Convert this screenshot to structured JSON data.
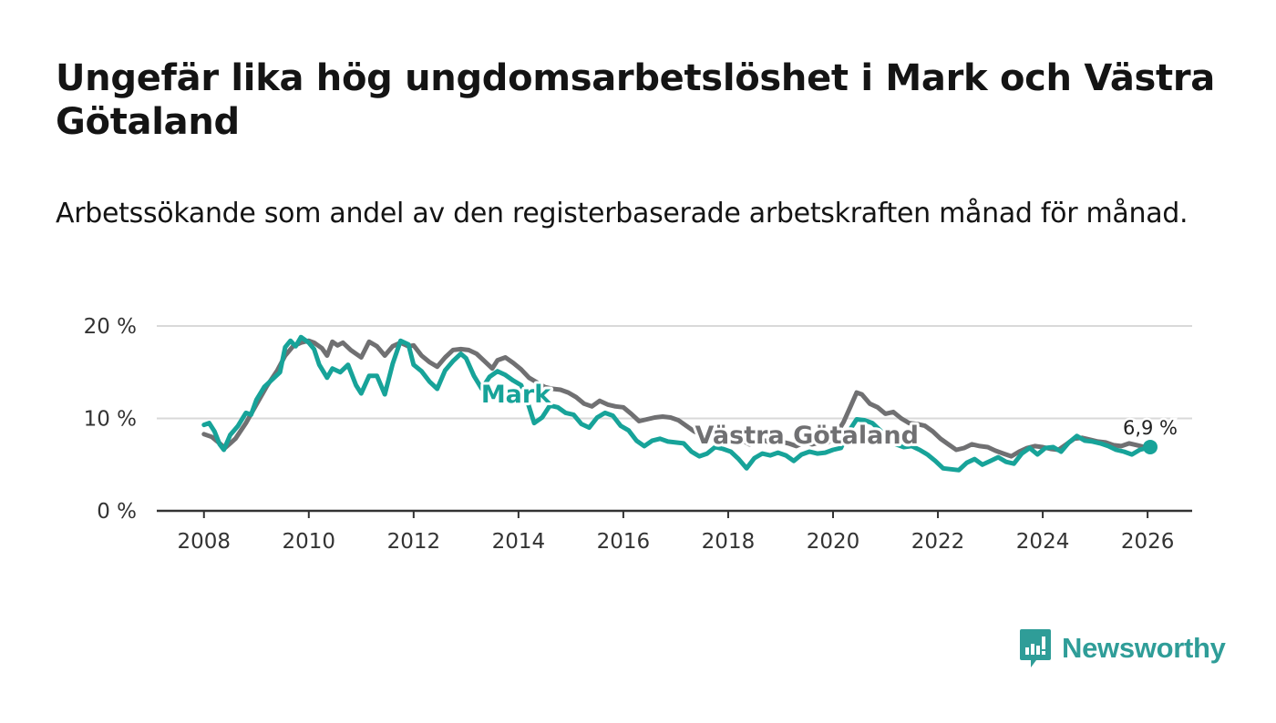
{
  "header": {
    "title": "Ungefär lika hög ungdomsarbetslöshet i Mark och Västra Götaland",
    "subtitle": "Arbetssökande som andel av den registerbaserade arbetskraften månad för månad."
  },
  "brand": {
    "name": "Newsworthy"
  },
  "colors": {
    "mark": "#17a399",
    "vastra_gotaland": "#707072",
    "grid": "#d9d9d9",
    "axis": "#333333",
    "brand": "#2f9d98"
  },
  "chart_data": {
    "type": "line",
    "title": "Ungefär lika hög ungdomsarbetslöshet i Mark och Västra Götaland",
    "xlabel": "",
    "ylabel": "",
    "xlim": [
      2007.1,
      2026.85
    ],
    "ylim": [
      0,
      20
    ],
    "x_ticks": [
      2008,
      2010,
      2012,
      2014,
      2016,
      2018,
      2020,
      2022,
      2024,
      2026
    ],
    "x_tick_labels": [
      "2008",
      "2010",
      "2012",
      "2014",
      "2016",
      "2018",
      "2020",
      "2022",
      "2024",
      "2026"
    ],
    "y_ticks": [
      0,
      10,
      20
    ],
    "y_tick_labels": [
      "0 %",
      "10 %",
      "20 %"
    ],
    "grid": true,
    "end_label": "6,9 %",
    "series": [
      {
        "name": "Västra Götaland",
        "label": "Västra Götaland",
        "points": [
          [
            2008.0,
            8.3
          ],
          [
            2008.15,
            8.0
          ],
          [
            2008.3,
            7.3
          ],
          [
            2008.4,
            6.8
          ],
          [
            2008.6,
            7.8
          ],
          [
            2008.8,
            9.5
          ],
          [
            2009.0,
            11.5
          ],
          [
            2009.2,
            13.5
          ],
          [
            2009.4,
            15.2
          ],
          [
            2009.55,
            16.8
          ],
          [
            2009.7,
            17.8
          ],
          [
            2009.85,
            18.2
          ],
          [
            2010.0,
            18.4
          ],
          [
            2010.1,
            18.2
          ],
          [
            2010.25,
            17.6
          ],
          [
            2010.35,
            16.8
          ],
          [
            2010.45,
            18.3
          ],
          [
            2010.55,
            17.9
          ],
          [
            2010.65,
            18.2
          ],
          [
            2010.8,
            17.4
          ],
          [
            2011.0,
            16.6
          ],
          [
            2011.15,
            18.3
          ],
          [
            2011.3,
            17.8
          ],
          [
            2011.45,
            16.8
          ],
          [
            2011.6,
            17.8
          ],
          [
            2011.75,
            18.2
          ],
          [
            2011.9,
            17.8
          ],
          [
            2012.0,
            17.9
          ],
          [
            2012.15,
            16.8
          ],
          [
            2012.3,
            16.1
          ],
          [
            2012.45,
            15.6
          ],
          [
            2012.6,
            16.6
          ],
          [
            2012.75,
            17.4
          ],
          [
            2012.9,
            17.5
          ],
          [
            2013.05,
            17.4
          ],
          [
            2013.2,
            17.0
          ],
          [
            2013.35,
            16.2
          ],
          [
            2013.5,
            15.4
          ],
          [
            2013.6,
            16.3
          ],
          [
            2013.75,
            16.6
          ],
          [
            2013.9,
            16.0
          ],
          [
            2014.05,
            15.3
          ],
          [
            2014.2,
            14.4
          ],
          [
            2014.35,
            13.9
          ],
          [
            2014.5,
            13.4
          ],
          [
            2014.65,
            13.2
          ],
          [
            2014.8,
            13.1
          ],
          [
            2014.95,
            12.8
          ],
          [
            2015.1,
            12.3
          ],
          [
            2015.25,
            11.6
          ],
          [
            2015.4,
            11.3
          ],
          [
            2015.55,
            11.9
          ],
          [
            2015.7,
            11.5
          ],
          [
            2015.85,
            11.3
          ],
          [
            2016.0,
            11.2
          ],
          [
            2016.15,
            10.5
          ],
          [
            2016.3,
            9.7
          ],
          [
            2016.45,
            9.9
          ],
          [
            2016.6,
            10.1
          ],
          [
            2016.75,
            10.2
          ],
          [
            2016.9,
            10.1
          ],
          [
            2017.05,
            9.8
          ],
          [
            2017.2,
            9.2
          ],
          [
            2017.35,
            8.6
          ],
          [
            2017.5,
            8.2
          ],
          [
            2017.65,
            8.4
          ],
          [
            2017.8,
            8.7
          ],
          [
            2017.95,
            8.4
          ],
          [
            2018.1,
            8.0
          ],
          [
            2018.25,
            7.7
          ],
          [
            2018.4,
            7.2
          ],
          [
            2018.55,
            7.4
          ],
          [
            2018.7,
            7.6
          ],
          [
            2018.85,
            7.3
          ],
          [
            2019.0,
            7.5
          ],
          [
            2019.15,
            7.3
          ],
          [
            2019.3,
            7.0
          ],
          [
            2019.45,
            7.4
          ],
          [
            2019.6,
            7.2
          ],
          [
            2019.75,
            7.4
          ],
          [
            2019.9,
            7.4
          ],
          [
            2020.05,
            8.2
          ],
          [
            2020.2,
            9.6
          ],
          [
            2020.35,
            11.5
          ],
          [
            2020.45,
            12.8
          ],
          [
            2020.55,
            12.6
          ],
          [
            2020.7,
            11.6
          ],
          [
            2020.85,
            11.2
          ],
          [
            2021.0,
            10.5
          ],
          [
            2021.15,
            10.7
          ],
          [
            2021.3,
            10.0
          ],
          [
            2021.45,
            9.5
          ],
          [
            2021.6,
            9.4
          ],
          [
            2021.75,
            9.2
          ],
          [
            2021.9,
            8.6
          ],
          [
            2022.05,
            7.8
          ],
          [
            2022.2,
            7.2
          ],
          [
            2022.35,
            6.6
          ],
          [
            2022.5,
            6.8
          ],
          [
            2022.65,
            7.2
          ],
          [
            2022.8,
            7.0
          ],
          [
            2022.95,
            6.9
          ],
          [
            2023.1,
            6.5
          ],
          [
            2023.25,
            6.2
          ],
          [
            2023.4,
            5.9
          ],
          [
            2023.55,
            6.4
          ],
          [
            2023.7,
            6.8
          ],
          [
            2023.85,
            7.0
          ],
          [
            2024.0,
            6.9
          ],
          [
            2024.15,
            6.7
          ],
          [
            2024.3,
            6.6
          ],
          [
            2024.45,
            7.2
          ],
          [
            2024.6,
            7.8
          ],
          [
            2024.75,
            7.9
          ],
          [
            2024.9,
            7.7
          ],
          [
            2025.05,
            7.5
          ],
          [
            2025.2,
            7.4
          ],
          [
            2025.35,
            7.1
          ],
          [
            2025.5,
            7.0
          ],
          [
            2025.65,
            7.3
          ],
          [
            2025.8,
            7.1
          ],
          [
            2025.95,
            6.9
          ],
          [
            2026.05,
            6.9
          ]
        ]
      },
      {
        "name": "Mark",
        "label": "Mark",
        "points": [
          [
            2008.0,
            9.3
          ],
          [
            2008.1,
            9.5
          ],
          [
            2008.2,
            8.6
          ],
          [
            2008.3,
            7.2
          ],
          [
            2008.38,
            6.6
          ],
          [
            2008.5,
            8.2
          ],
          [
            2008.65,
            9.2
          ],
          [
            2008.8,
            10.6
          ],
          [
            2008.9,
            10.4
          ],
          [
            2009.0,
            12.0
          ],
          [
            2009.15,
            13.4
          ],
          [
            2009.3,
            14.2
          ],
          [
            2009.45,
            15.0
          ],
          [
            2009.55,
            17.7
          ],
          [
            2009.65,
            18.4
          ],
          [
            2009.75,
            17.8
          ],
          [
            2009.85,
            18.8
          ],
          [
            2010.0,
            18.2
          ],
          [
            2010.1,
            17.5
          ],
          [
            2010.2,
            15.8
          ],
          [
            2010.35,
            14.4
          ],
          [
            2010.45,
            15.4
          ],
          [
            2010.6,
            15.0
          ],
          [
            2010.75,
            15.8
          ],
          [
            2010.9,
            13.6
          ],
          [
            2011.0,
            12.7
          ],
          [
            2011.15,
            14.6
          ],
          [
            2011.3,
            14.6
          ],
          [
            2011.45,
            12.6
          ],
          [
            2011.6,
            15.9
          ],
          [
            2011.75,
            18.4
          ],
          [
            2011.9,
            18.0
          ],
          [
            2012.0,
            15.8
          ],
          [
            2012.15,
            15.1
          ],
          [
            2012.3,
            14.0
          ],
          [
            2012.45,
            13.2
          ],
          [
            2012.6,
            15.2
          ],
          [
            2012.75,
            16.2
          ],
          [
            2012.9,
            17.0
          ],
          [
            2013.0,
            16.5
          ],
          [
            2013.15,
            14.6
          ],
          [
            2013.3,
            13.2
          ],
          [
            2013.45,
            14.5
          ],
          [
            2013.6,
            15.1
          ],
          [
            2013.75,
            14.7
          ],
          [
            2013.9,
            14.1
          ],
          [
            2014.05,
            13.6
          ],
          [
            2014.15,
            12.2
          ],
          [
            2014.3,
            9.5
          ],
          [
            2014.45,
            10.1
          ],
          [
            2014.6,
            11.4
          ],
          [
            2014.75,
            11.2
          ],
          [
            2014.9,
            10.6
          ],
          [
            2015.05,
            10.4
          ],
          [
            2015.2,
            9.4
          ],
          [
            2015.35,
            9.0
          ],
          [
            2015.5,
            10.1
          ],
          [
            2015.65,
            10.6
          ],
          [
            2015.8,
            10.3
          ],
          [
            2015.95,
            9.2
          ],
          [
            2016.1,
            8.7
          ],
          [
            2016.25,
            7.6
          ],
          [
            2016.4,
            7.0
          ],
          [
            2016.55,
            7.6
          ],
          [
            2016.7,
            7.8
          ],
          [
            2016.85,
            7.5
          ],
          [
            2017.0,
            7.4
          ],
          [
            2017.15,
            7.3
          ],
          [
            2017.3,
            6.4
          ],
          [
            2017.45,
            5.9
          ],
          [
            2017.6,
            6.2
          ],
          [
            2017.75,
            6.9
          ],
          [
            2017.9,
            6.7
          ],
          [
            2018.05,
            6.4
          ],
          [
            2018.2,
            5.6
          ],
          [
            2018.35,
            4.6
          ],
          [
            2018.5,
            5.7
          ],
          [
            2018.65,
            6.2
          ],
          [
            2018.8,
            6.0
          ],
          [
            2018.95,
            6.3
          ],
          [
            2019.1,
            6.0
          ],
          [
            2019.25,
            5.4
          ],
          [
            2019.4,
            6.1
          ],
          [
            2019.55,
            6.4
          ],
          [
            2019.7,
            6.2
          ],
          [
            2019.85,
            6.3
          ],
          [
            2020.0,
            6.6
          ],
          [
            2020.15,
            6.8
          ],
          [
            2020.3,
            8.6
          ],
          [
            2020.45,
            9.9
          ],
          [
            2020.6,
            9.8
          ],
          [
            2020.75,
            9.5
          ],
          [
            2020.9,
            8.7
          ],
          [
            2021.05,
            7.6
          ],
          [
            2021.2,
            7.2
          ],
          [
            2021.35,
            6.9
          ],
          [
            2021.5,
            7.0
          ],
          [
            2021.65,
            6.6
          ],
          [
            2021.8,
            6.1
          ],
          [
            2021.95,
            5.4
          ],
          [
            2022.1,
            4.6
          ],
          [
            2022.25,
            4.5
          ],
          [
            2022.4,
            4.4
          ],
          [
            2022.55,
            5.2
          ],
          [
            2022.7,
            5.6
          ],
          [
            2022.85,
            5.0
          ],
          [
            2023.0,
            5.4
          ],
          [
            2023.15,
            5.8
          ],
          [
            2023.3,
            5.3
          ],
          [
            2023.45,
            5.1
          ],
          [
            2023.6,
            6.2
          ],
          [
            2023.75,
            6.8
          ],
          [
            2023.9,
            6.1
          ],
          [
            2024.05,
            6.8
          ],
          [
            2024.2,
            6.9
          ],
          [
            2024.35,
            6.4
          ],
          [
            2024.5,
            7.4
          ],
          [
            2024.65,
            8.1
          ],
          [
            2024.8,
            7.6
          ],
          [
            2024.95,
            7.5
          ],
          [
            2025.1,
            7.3
          ],
          [
            2025.25,
            7.0
          ],
          [
            2025.4,
            6.6
          ],
          [
            2025.55,
            6.4
          ],
          [
            2025.7,
            6.1
          ],
          [
            2025.85,
            6.6
          ],
          [
            2026.05,
            6.9
          ]
        ]
      }
    ]
  }
}
